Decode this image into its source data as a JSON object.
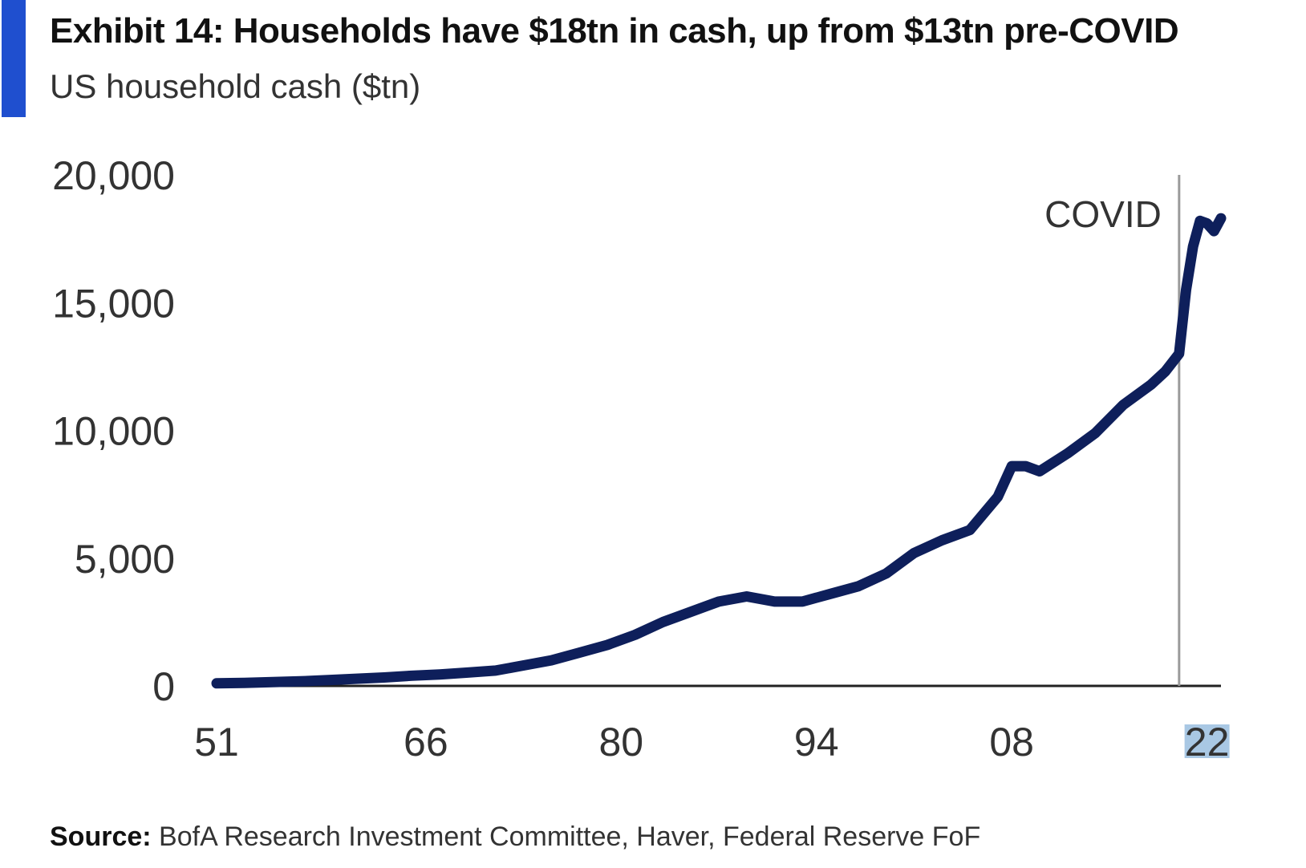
{
  "header": {
    "title": "Exhibit 14: Households have $18tn in cash, up from $13tn pre-COVID",
    "subtitle": "US household cash ($tn)",
    "accent_color": "#1f4fcf"
  },
  "source": {
    "label": "Source:",
    "text": "BofA Research Investment Committee, Haver, Federal Reserve FoF"
  },
  "chart_data": {
    "type": "line",
    "title": "",
    "xlabel": "",
    "ylabel": "",
    "x_ticks": [
      {
        "label": "51",
        "year": 1951
      },
      {
        "label": "66",
        "year": 1966
      },
      {
        "label": "80",
        "year": 1980
      },
      {
        "label": "94",
        "year": 1994
      },
      {
        "label": "08",
        "year": 2008
      },
      {
        "label": "22",
        "year": 2022,
        "highlighted": true
      }
    ],
    "y_ticks": [
      0,
      5000,
      10000,
      15000,
      20000
    ],
    "y_tick_labels": [
      "0",
      "5,000",
      "10,000",
      "15,000",
      "20,000"
    ],
    "ylim": [
      0,
      20000
    ],
    "xlim": [
      1951,
      2023
    ],
    "grid": false,
    "line_color": "#0e1f5b",
    "highlight_color": "#a9c8e4",
    "annotation": {
      "label": "COVID",
      "year": 2020
    },
    "series": [
      {
        "x": [
          1951,
          1953,
          1955,
          1957,
          1959,
          1961,
          1963,
          1965,
          1967,
          1969,
          1971,
          1973,
          1975,
          1977,
          1979,
          1981,
          1983,
          1985,
          1987,
          1989,
          1991,
          1993,
          1995,
          1997,
          1999,
          2001,
          2003,
          2005,
          2007,
          2008,
          2009,
          2010,
          2012,
          2014,
          2016,
          2018,
          2019,
          2020,
          2020.5,
          2021,
          2021.5,
          2022,
          2022.5,
          2023
        ],
        "y": [
          100,
          120,
          150,
          180,
          230,
          280,
          330,
          400,
          450,
          520,
          600,
          800,
          1000,
          1300,
          1600,
          2000,
          2500,
          2900,
          3300,
          3500,
          3300,
          3300,
          3600,
          3900,
          4400,
          5200,
          5700,
          6100,
          7400,
          8600,
          8600,
          8400,
          9100,
          9900,
          11000,
          11800,
          12300,
          13000,
          15500,
          17200,
          18200,
          18100,
          17800,
          18300
        ]
      }
    ]
  }
}
